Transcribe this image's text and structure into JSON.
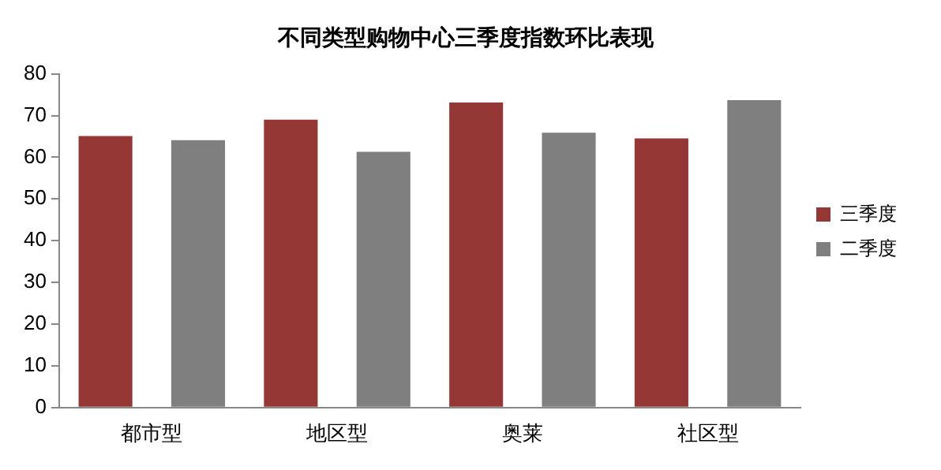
{
  "chart_data": {
    "type": "bar",
    "title": "不同类型购物中心三季度指数环比表现",
    "categories": [
      "都市型",
      "地区型",
      "奥莱",
      "社区型"
    ],
    "series": [
      {
        "name": "三季度",
        "color": "#953735",
        "values": [
          65.1,
          69.0,
          73.1,
          64.5
        ]
      },
      {
        "name": "二季度",
        "color": "#7f7f7f",
        "values": [
          64.1,
          61.3,
          65.9,
          73.7
        ]
      }
    ],
    "ylim": [
      0,
      80
    ],
    "yticks": [
      0,
      10,
      20,
      30,
      40,
      50,
      60,
      70,
      80
    ],
    "grid": false,
    "legend": "right"
  }
}
